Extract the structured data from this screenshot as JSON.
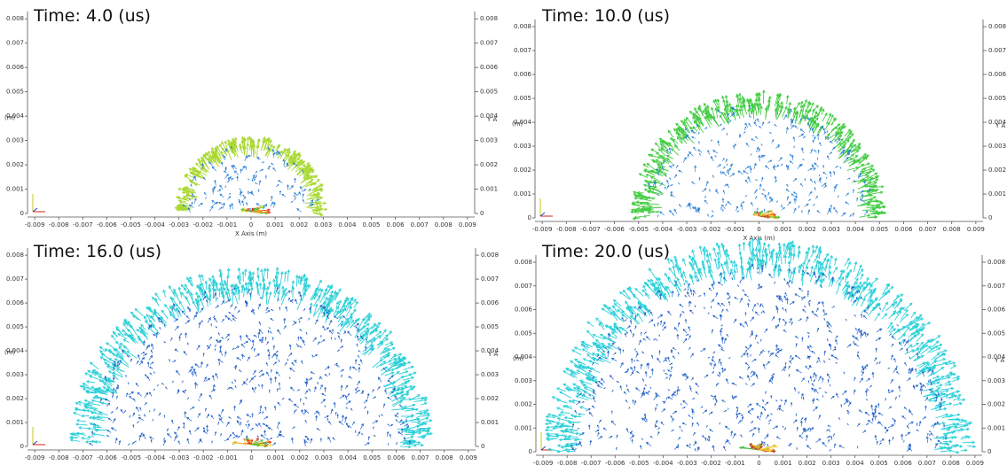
{
  "chart_data": [
    {
      "type": "quiver",
      "title": "Time: 4.0 (us)",
      "x_label": "X Axis (m)",
      "y_label": "(m)",
      "y2_label": "Y A",
      "xlim": [
        -0.0093,
        0.0093
      ],
      "ylim": [
        0,
        0.0083
      ],
      "xticks": [
        -0.009,
        -0.008,
        -0.007,
        -0.006,
        -0.005,
        -0.004,
        -0.003,
        -0.002,
        -0.001,
        0,
        0.001,
        0.002,
        0.003,
        0.004,
        0.005,
        0.006,
        0.007,
        0.008,
        0.009
      ],
      "yticks": [
        0,
        0.001,
        0.002,
        0.003,
        0.004,
        0.005,
        0.006,
        0.007,
        0.008
      ],
      "front_radius": 0.0033,
      "front_color": "#a8d830",
      "inner_color": "#2a7fd4"
    },
    {
      "type": "quiver",
      "title": "Time: 10.0 (us)",
      "x_label": "X Axis (m)",
      "y_label": "(m)",
      "y2_label": "Y A",
      "xlim": [
        -0.0093,
        0.0093
      ],
      "ylim": [
        0,
        0.0083
      ],
      "xticks": [
        -0.009,
        -0.008,
        -0.007,
        -0.006,
        -0.005,
        -0.004,
        -0.003,
        -0.002,
        -0.001,
        0,
        0.001,
        0.002,
        0.003,
        0.004,
        0.005,
        0.006,
        0.007,
        0.008,
        0.009
      ],
      "yticks": [
        0,
        0.001,
        0.002,
        0.003,
        0.004,
        0.005,
        0.006,
        0.007,
        0.008
      ],
      "front_radius": 0.0055,
      "front_color": "#44cc44",
      "inner_color": "#2a7fd4"
    },
    {
      "type": "quiver",
      "title": "Time: 16.0 (us)",
      "y_label": "(m)",
      "y2_label": "Y A",
      "xlim": [
        -0.0093,
        0.0093
      ],
      "ylim": [
        0,
        0.0083
      ],
      "xticks": [
        -0.009,
        -0.008,
        -0.007,
        -0.006,
        -0.005,
        -0.004,
        -0.003,
        -0.002,
        -0.001,
        0,
        0.001,
        0.002,
        0.003,
        0.004,
        0.005,
        0.006,
        0.007,
        0.008,
        0.009
      ],
      "yticks": [
        0,
        0.001,
        0.002,
        0.003,
        0.004,
        0.005,
        0.006,
        0.007,
        0.008
      ],
      "front_radius": 0.0078,
      "front_color": "#2ccfd6",
      "inner_color": "#2060c8"
    },
    {
      "type": "quiver",
      "title": "Time: 20.0 (us)",
      "y_label": "(m)",
      "y2_label": "Y A",
      "xlim": [
        -0.0093,
        0.0093
      ],
      "ylim": [
        0,
        0.0083
      ],
      "xticks": [
        -0.009,
        -0.008,
        -0.007,
        -0.006,
        -0.005,
        -0.004,
        -0.003,
        -0.002,
        -0.001,
        0,
        0.001,
        0.002,
        0.003,
        0.004,
        0.005,
        0.006,
        0.007,
        0.008,
        0.009
      ],
      "yticks": [
        0,
        0.001,
        0.002,
        0.003,
        0.004,
        0.005,
        0.006,
        0.007,
        0.008
      ],
      "front_radius": 0.0093,
      "front_color": "#2cd0d8",
      "inner_color": "#2060c8"
    }
  ]
}
